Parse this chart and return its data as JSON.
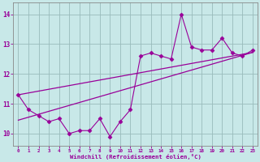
{
  "xlabel": "Windchill (Refroidissement éolien,°C)",
  "x": [
    0,
    1,
    2,
    3,
    4,
    5,
    6,
    7,
    8,
    9,
    10,
    11,
    12,
    13,
    14,
    15,
    16,
    17,
    18,
    19,
    20,
    21,
    22,
    23
  ],
  "y_data": [
    11.3,
    10.8,
    10.6,
    10.4,
    10.5,
    10.0,
    10.1,
    10.1,
    10.5,
    9.9,
    10.4,
    10.8,
    12.6,
    12.7,
    12.6,
    12.5,
    14.0,
    12.9,
    12.8,
    12.8,
    13.2,
    12.7,
    12.6,
    12.8
  ],
  "line_color": "#990099",
  "bg_color": "#c8e8e8",
  "grid_color": "#99bbbb",
  "ylim": [
    9.6,
    14.4
  ],
  "yticks": [
    10,
    11,
    12,
    13,
    14
  ],
  "xlim": [
    -0.5,
    23.5
  ],
  "trend1_start": 11.3,
  "trend1_end": 12.72,
  "trend2_start": 10.45,
  "trend2_end": 12.72,
  "marker": "D",
  "markersize": 2.5
}
